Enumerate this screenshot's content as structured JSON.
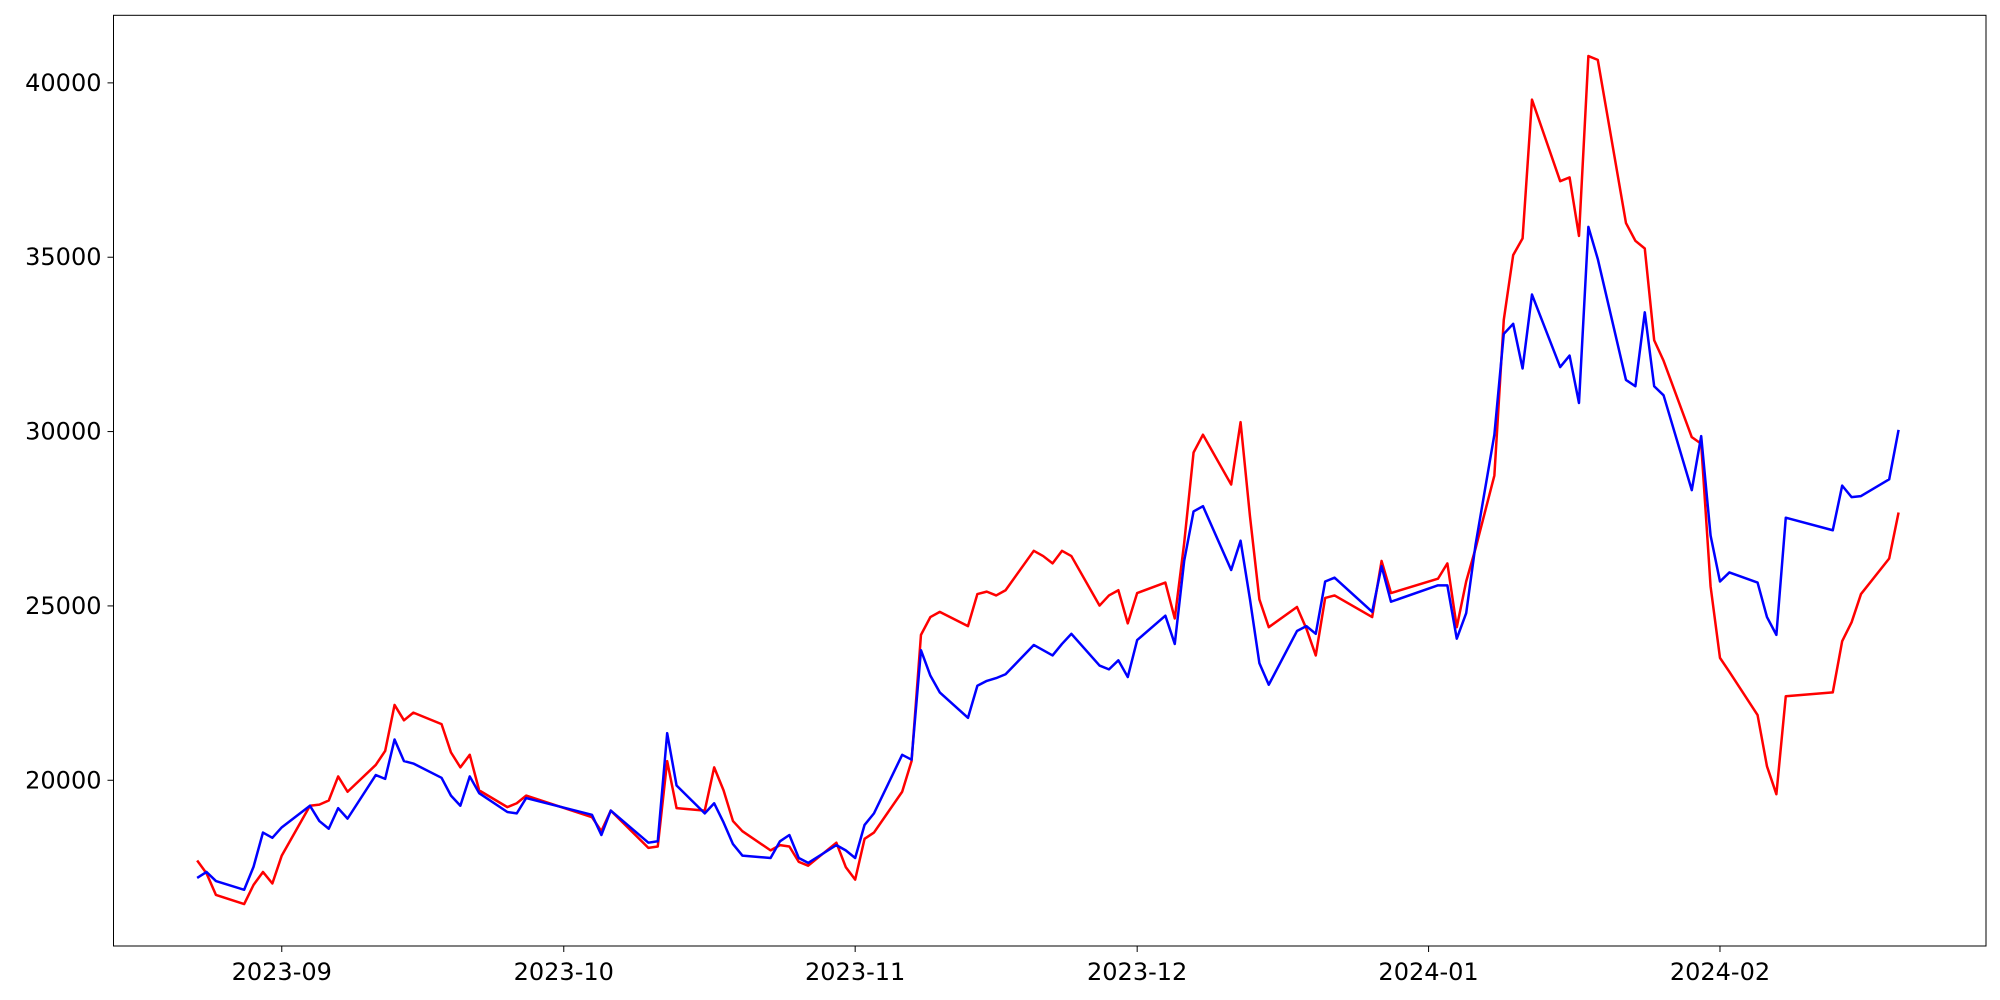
{
  "chart_data": {
    "type": "line",
    "x": [
      22,
      23,
      24,
      27,
      28,
      29,
      30,
      31,
      34,
      35,
      36,
      37,
      38,
      41,
      42,
      43,
      44,
      45,
      48,
      49,
      50,
      51,
      52,
      55,
      56,
      57,
      64,
      65,
      66,
      70,
      71,
      72,
      73,
      76,
      77,
      78,
      79,
      80,
      83,
      84,
      85,
      86,
      87,
      90,
      91,
      92,
      93,
      94,
      97,
      98,
      99,
      100,
      101,
      104,
      105,
      106,
      107,
      108,
      111,
      112,
      113,
      114,
      115,
      118,
      119,
      120,
      121,
      122,
      125,
      126,
      127,
      128,
      129,
      132,
      133,
      134,
      135,
      136,
      139,
      140,
      141,
      142,
      143,
      147,
      148,
      149,
      154,
      155,
      156,
      157,
      158,
      160,
      161,
      162,
      163,
      164,
      167,
      168,
      169,
      170,
      171,
      174,
      175,
      176,
      177,
      178,
      181,
      182,
      183,
      184,
      185,
      188,
      189,
      190,
      191,
      196,
      197,
      198,
      199,
      202,
      203
    ],
    "series": [
      {
        "color": "#ff0000",
        "values": [
          17700,
          17330,
          16710,
          16450,
          17000,
          17370,
          17040,
          17840,
          19270,
          19300,
          19420,
          20110,
          19670,
          20440,
          20840,
          22160,
          21720,
          21940,
          21610,
          20800,
          20370,
          20730,
          19710,
          19230,
          19340,
          19560,
          18940,
          18540,
          19130,
          18060,
          18100,
          20550,
          19200,
          19130,
          20370,
          19710,
          18830,
          18540,
          17990,
          18140,
          18100,
          17660,
          17550,
          18210,
          17510,
          17150,
          18320,
          18500,
          19670,
          20550,
          24170,
          24680,
          24830,
          24420,
          25340,
          25410,
          25300,
          25450,
          26580,
          26430,
          26220,
          26580,
          26430,
          25010,
          25300,
          25450,
          24500,
          25370,
          25670,
          24640,
          26800,
          29400,
          29910,
          28480,
          30270,
          27570,
          25190,
          24390,
          24970,
          24350,
          23580,
          25230,
          25300,
          24680,
          26290,
          25370,
          25780,
          26220,
          24390,
          25700,
          26650,
          28740,
          33200,
          35060,
          35540,
          39520,
          37180,
          37290,
          35610,
          40770,
          40660,
          35980,
          35470,
          35250,
          32620,
          32030,
          29840,
          29650,
          25560,
          23510,
          23110,
          21870,
          20400,
          19600,
          22410,
          22520,
          23990,
          24530,
          25340,
          26360,
          27680
        ]
      },
      {
        "color": "#0000ff",
        "values": [
          17200,
          17370,
          17110,
          16860,
          17520,
          18500,
          18350,
          18650,
          19270,
          18830,
          18610,
          19200,
          18900,
          20150,
          20040,
          21170,
          20550,
          20480,
          20070,
          19560,
          19270,
          20110,
          19630,
          19090,
          19050,
          19490,
          19010,
          18430,
          19130,
          18210,
          18250,
          21350,
          19850,
          19050,
          19340,
          18790,
          18170,
          17840,
          17770,
          18250,
          18430,
          17770,
          17630,
          18140,
          17990,
          17770,
          18720,
          19050,
          20730,
          20590,
          23730,
          23000,
          22520,
          21790,
          22710,
          22850,
          22930,
          23040,
          23880,
          23730,
          23580,
          23910,
          24200,
          23290,
          23180,
          23440,
          22960,
          24020,
          24720,
          23910,
          26290,
          27710,
          27860,
          26030,
          26870,
          25190,
          23360,
          22740,
          24280,
          24420,
          24200,
          25700,
          25810,
          24830,
          26140,
          25120,
          25590,
          25590,
          24060,
          24790,
          26760,
          29910,
          32800,
          33090,
          31810,
          33930,
          31850,
          32180,
          30820,
          35870,
          34950,
          31480,
          31300,
          33420,
          31300,
          31040,
          28320,
          29870,
          27020,
          25700,
          25960,
          25670,
          24680,
          24170,
          27530,
          27170,
          28450,
          28120,
          28150,
          28630,
          30050
        ]
      }
    ],
    "xlim": [
      13.1,
      212.3
    ],
    "xticks": [
      {
        "value": 31,
        "label": "2023-09"
      },
      {
        "value": 61,
        "label": "2023-10"
      },
      {
        "value": 92,
        "label": "2023-11"
      },
      {
        "value": 122,
        "label": "2023-12"
      },
      {
        "value": 153,
        "label": "2024-01"
      },
      {
        "value": 184,
        "label": "2024-02"
      }
    ],
    "ylim": [
      15247,
      41938
    ],
    "yticks": [
      20000,
      25000,
      30000,
      35000,
      40000
    ]
  }
}
